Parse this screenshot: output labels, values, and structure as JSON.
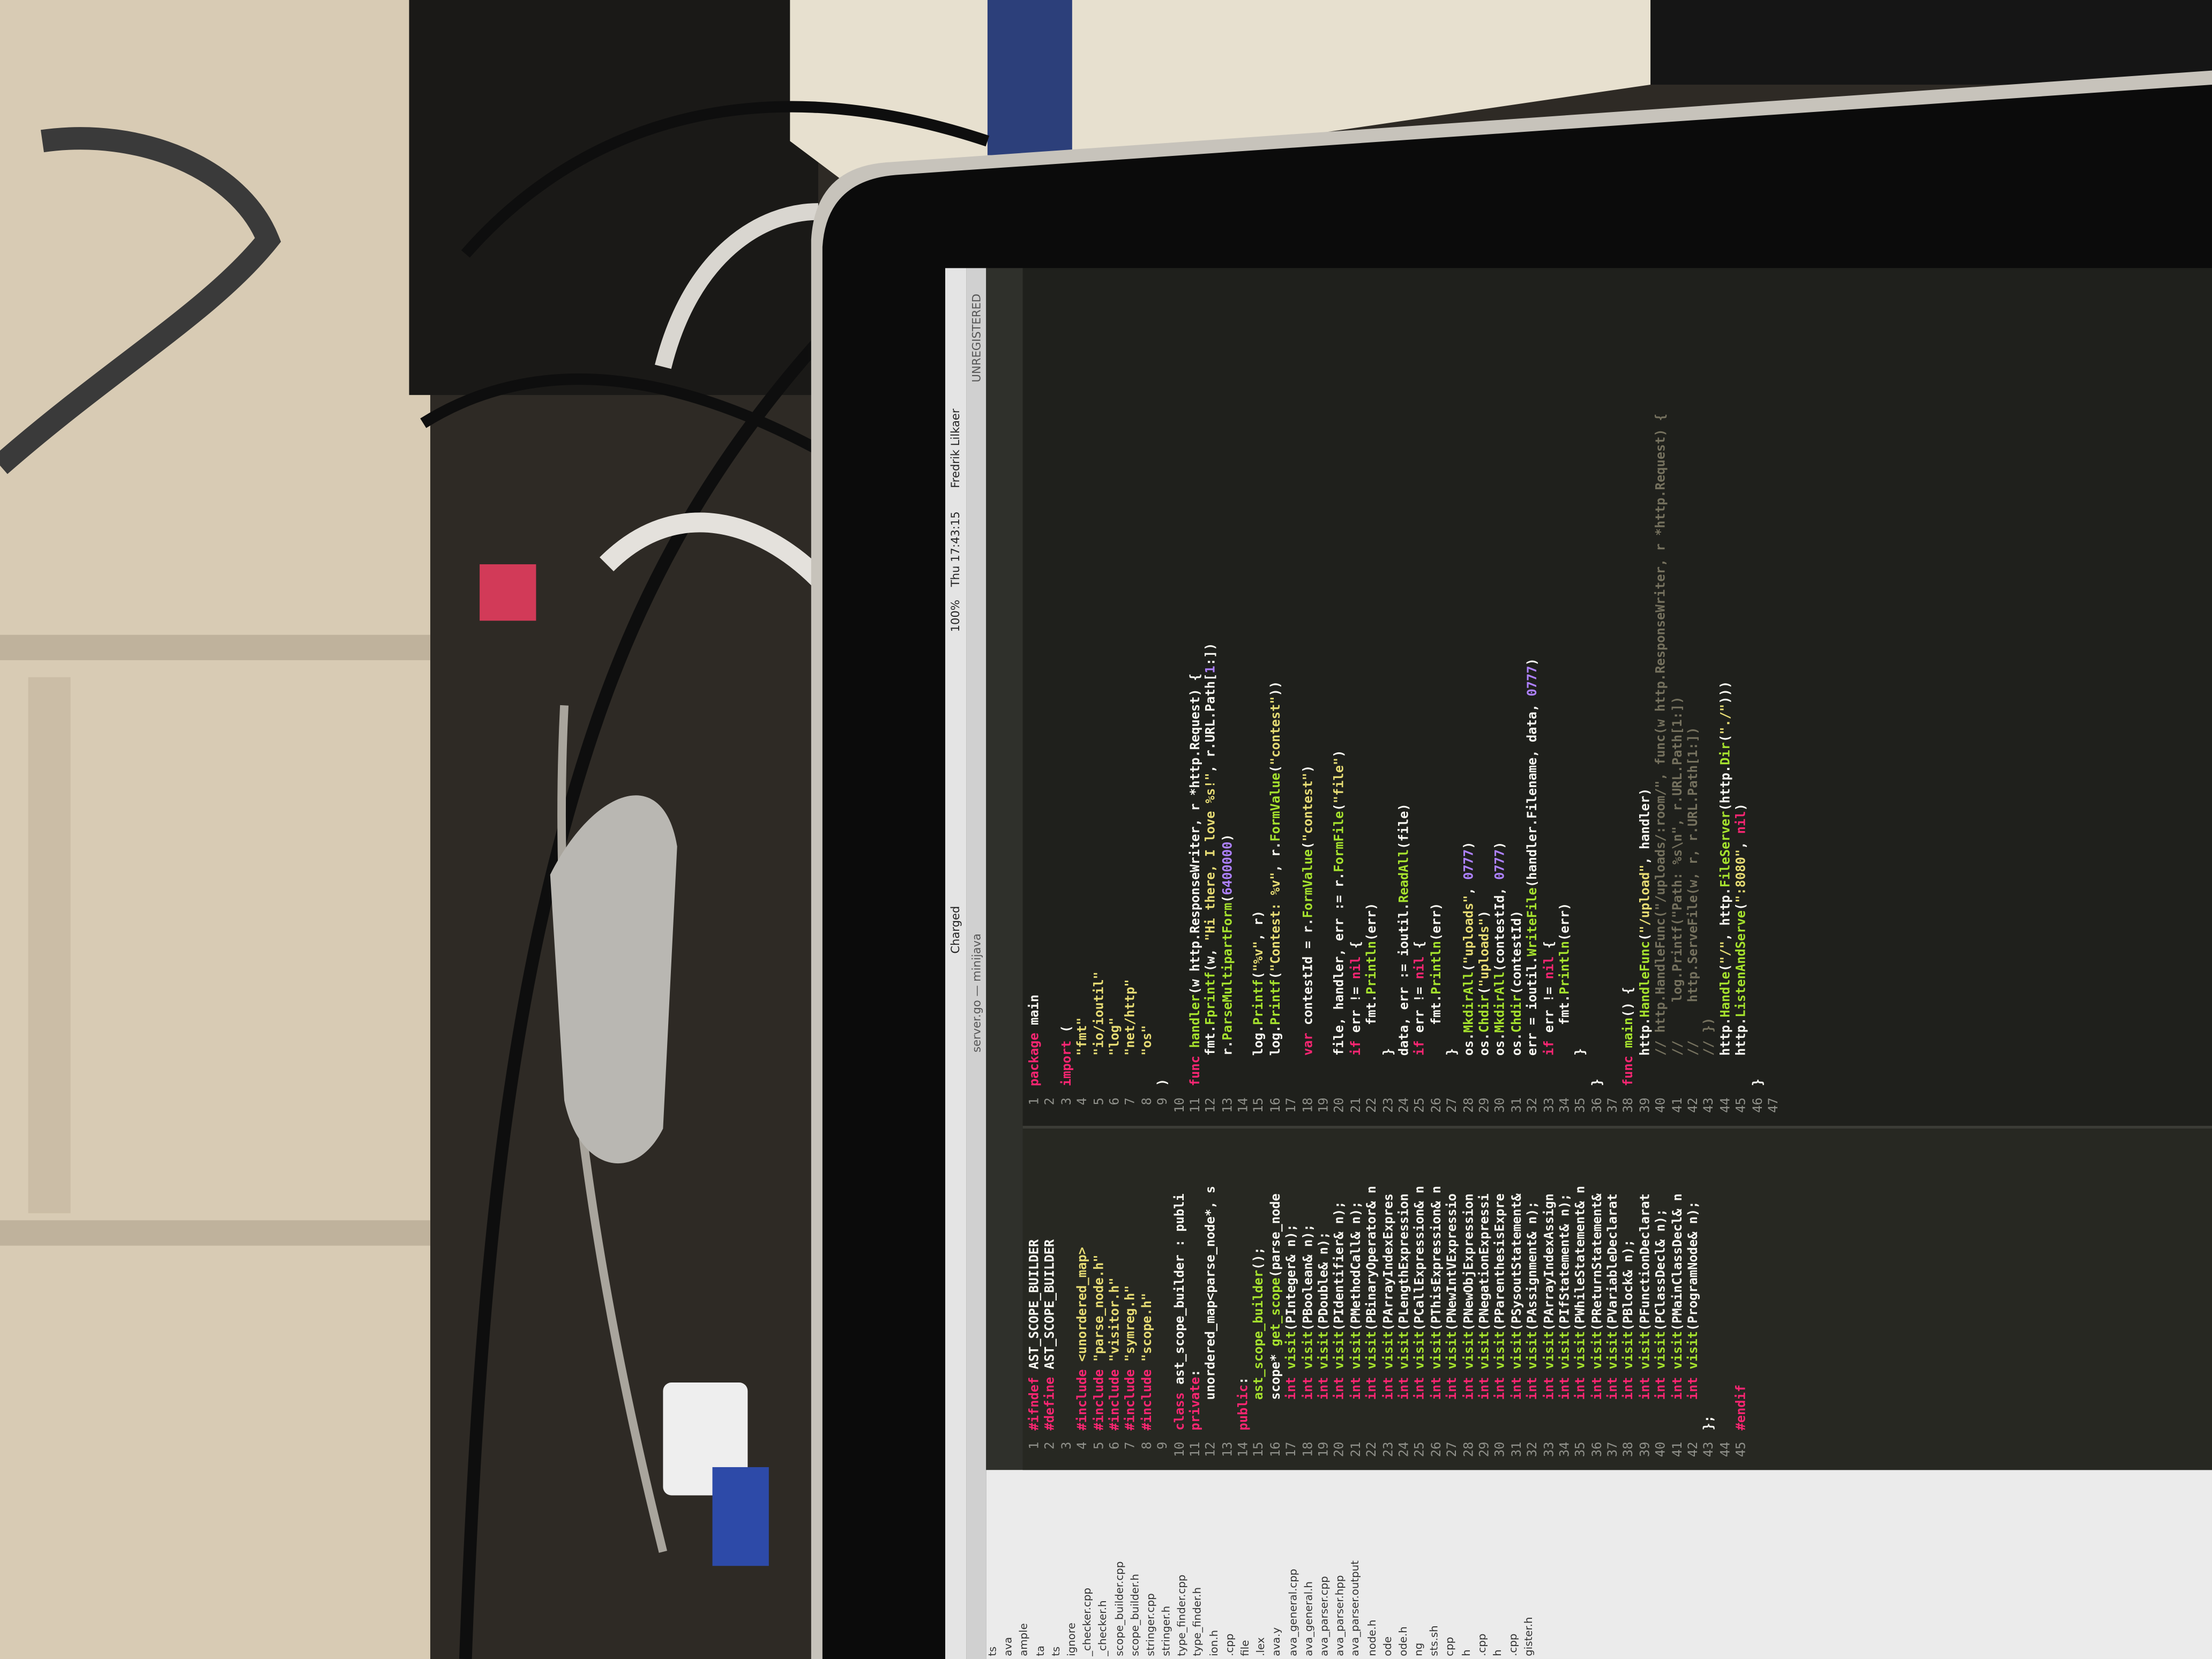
{
  "menu_bar": {
    "battery": "Charged",
    "battery_percent": "100%",
    "clock": "Thu 17:43:15",
    "user": "Fredrik Lilkaer"
  },
  "title_bar": {
    "title": "server.go — minijava",
    "license": "UNREGISTERED"
  },
  "sidebar": {
    "files": [
      "ts",
      "ava",
      "ample",
      "ta",
      "ts",
      "ignore",
      "_checker.cpp",
      "_checker.h",
      "scope_builder.cpp",
      "scope_builder.h",
      "stringer.cpp",
      "stringer.h",
      "type_finder.cpp",
      "type_finder.h",
      "ion.h",
      ".cpp",
      "file",
      ".lex",
      "ava.y",
      "ava_general.cpp",
      "ava_general.h",
      "ava_parser.cpp",
      "ava_parser.hpp",
      "ava_parser.output",
      "node.h",
      "ode",
      "ode.h",
      "ng",
      "sts.sh",
      "cpp",
      "h",
      ".cpp",
      "h",
      ".cpp",
      "gister.h"
    ]
  },
  "left_pane": {
    "lines": [
      {
        "number": 1,
        "text": "#ifndef AST_SCOPE_BUILDER"
      },
      {
        "number": 2,
        "text": "#define AST_SCOPE_BUILDER"
      },
      {
        "number": 3
      },
      {
        "number": 4,
        "text": "#include <unordered_map>"
      },
      {
        "number": 5,
        "text": "#include \"parse_node.h\""
      },
      {
        "number": 6,
        "text": "#include \"visitor.h\""
      },
      {
        "number": 7,
        "text": "#include \"symreg.h\""
      },
      {
        "number": 8,
        "text": "#include \"scope.h\""
      },
      {
        "number": 9
      },
      {
        "number": 10,
        "text": "class ast_scope_builder : publi"
      },
      {
        "number": 11,
        "text": "private:"
      },
      {
        "number": 12,
        "text": "    unordered_map<parse_node*, s"
      },
      {
        "number": 13
      },
      {
        "number": 14,
        "text": "public:"
      },
      {
        "number": 15,
        "text": "    ast_scope_builder();"
      },
      {
        "number": 16,
        "text": "    scope* get_scope(parse_node"
      },
      {
        "number": 17,
        "text": "    int visit(PInteger& n);"
      },
      {
        "number": 18,
        "text": "    int visit(PBoolean& n);"
      },
      {
        "number": 19,
        "text": "    int visit(PDouble& n);"
      },
      {
        "number": 20,
        "text": "    int visit(PIdentifier& n);"
      },
      {
        "number": 21,
        "text": "    int visit(PMethodCall& n);"
      },
      {
        "number": 22,
        "text": "    int visit(PBinaryOperator& n"
      },
      {
        "number": 23,
        "text": "    int visit(PArrayIndexExpres"
      },
      {
        "number": 24,
        "text": "    int visit(PLengthExpression"
      },
      {
        "number": 25,
        "text": "    int visit(PCallExpression& n"
      },
      {
        "number": 26,
        "text": "    int visit(PThisExpression& n"
      },
      {
        "number": 27,
        "text": "    int visit(PNewIntVExpressio"
      },
      {
        "number": 28,
        "text": "    int visit(PNewObjExpression"
      },
      {
        "number": 29,
        "text": "    int visit(PNegationExpressi"
      },
      {
        "number": 30,
        "text": "    int visit(PParenthesisExpre"
      },
      {
        "number": 31,
        "text": "    int visit(PSysoutStatement&"
      },
      {
        "number": 32,
        "text": "    int visit(PAssignment& n);"
      },
      {
        "number": 33,
        "text": "    int visit(PArrayIndexAssign"
      },
      {
        "number": 34,
        "text": "    int visit(PIfStatement& n);"
      },
      {
        "number": 35,
        "text": "    int visit(PWhileStatement& n"
      },
      {
        "number": 36,
        "text": "    int visit(PReturnStatement&"
      },
      {
        "number": 37,
        "text": "    int visit(PVariableDeclarat"
      },
      {
        "number": 38,
        "text": "    int visit(PBlock& n);"
      },
      {
        "number": 39,
        "text": "    int visit(PFunctionDeclarat"
      },
      {
        "number": 40,
        "text": "    int visit(PClassDecl& n);"
      },
      {
        "number": 41,
        "text": "    int visit(PMainClassDecl& n"
      },
      {
        "number": 42,
        "text": "    int visit(ProgramNode& n);"
      },
      {
        "number": 43,
        "text": "};"
      },
      {
        "number": 44
      },
      {
        "number": 45,
        "text": "#endif"
      }
    ]
  },
  "right_pane": {
    "lines": [
      {
        "number": 1,
        "text": "package main"
      },
      {
        "number": 2
      },
      {
        "number": 3,
        "text": "import ("
      },
      {
        "number": 4,
        "text": "    \"fmt\""
      },
      {
        "number": 5,
        "text": "    \"io/ioutil\""
      },
      {
        "number": 6,
        "text": "    \"log\""
      },
      {
        "number": 7,
        "text": "    \"net/http\""
      },
      {
        "number": 8,
        "text": "    \"os\""
      },
      {
        "number": 9,
        "text": ")"
      },
      {
        "number": 10
      },
      {
        "number": 11,
        "text": "func handler(w http.ResponseWriter, r *http.Request) {"
      },
      {
        "number": 12,
        "text": "    fmt.Fprintf(w, \"Hi there, I love %s!\", r.URL.Path[1:])"
      },
      {
        "number": 13,
        "text": "    r.ParseMultipartForm(6400000)"
      },
      {
        "number": 14
      },
      {
        "number": 15,
        "text": "    log.Printf(\"%v\", r)"
      },
      {
        "number": 16,
        "text": "    log.Printf(\"Contest: %v\", r.FormValue(\"contest\"))"
      },
      {
        "number": 17
      },
      {
        "number": 18,
        "text": "    var contestId = r.FormValue(\"contest\")"
      },
      {
        "number": 19
      },
      {
        "number": 20,
        "text": "    file, handler, err := r.FormFile(\"file\")"
      },
      {
        "number": 21,
        "text": "    if err != nil {"
      },
      {
        "number": 22,
        "text": "        fmt.Println(err)"
      },
      {
        "number": 23,
        "text": "    }"
      },
      {
        "number": 24,
        "text": "    data, err := ioutil.ReadAll(file)"
      },
      {
        "number": 25,
        "text": "    if err != nil {"
      },
      {
        "number": 26,
        "text": "        fmt.Println(err)"
      },
      {
        "number": 27,
        "text": "    }"
      },
      {
        "number": 28,
        "text": "    os.MkdirAll(\"uploads\", 0777)"
      },
      {
        "number": 29,
        "text": "    os.Chdir(\"uploads\")"
      },
      {
        "number": 30,
        "text": "    os.MkdirAll(contestId, 0777)"
      },
      {
        "number": 31,
        "text": "    os.Chdir(contestId)"
      },
      {
        "number": 32,
        "text": "    err = ioutil.WriteFile(handler.Filename, data, 0777)"
      },
      {
        "number": 33,
        "text": "    if err != nil {"
      },
      {
        "number": 34,
        "text": "        fmt.Println(err)"
      },
      {
        "number": 35,
        "text": "    }"
      },
      {
        "number": 36,
        "text": "}"
      },
      {
        "number": 37
      },
      {
        "number": 38,
        "text": "func main() {"
      },
      {
        "number": 39,
        "text": "    http.HandleFunc(\"/upload\", handler)"
      },
      {
        "number": 40,
        "text": "    // http.HandleFunc(\"/uploads/:room/\", func(w http.ResponseWriter, r *http.Request) {"
      },
      {
        "number": 41,
        "text": "    //     log.Printf(\"Path: %s\\n\", r.URL.Path[1:])"
      },
      {
        "number": 42,
        "text": "    //     http.ServeFile(w, r, r.URL.Path[1:])"
      },
      {
        "number": 43,
        "text": "    // })"
      },
      {
        "number": 44,
        "text": "    http.Handle(\"/\", http.FileServer(http.Dir(\"./\")))"
      },
      {
        "number": 45,
        "text": "    http.ListenAndServe(\":8080\", nil)"
      },
      {
        "number": 46,
        "text": "}"
      },
      {
        "number": 47
      }
    ]
  }
}
